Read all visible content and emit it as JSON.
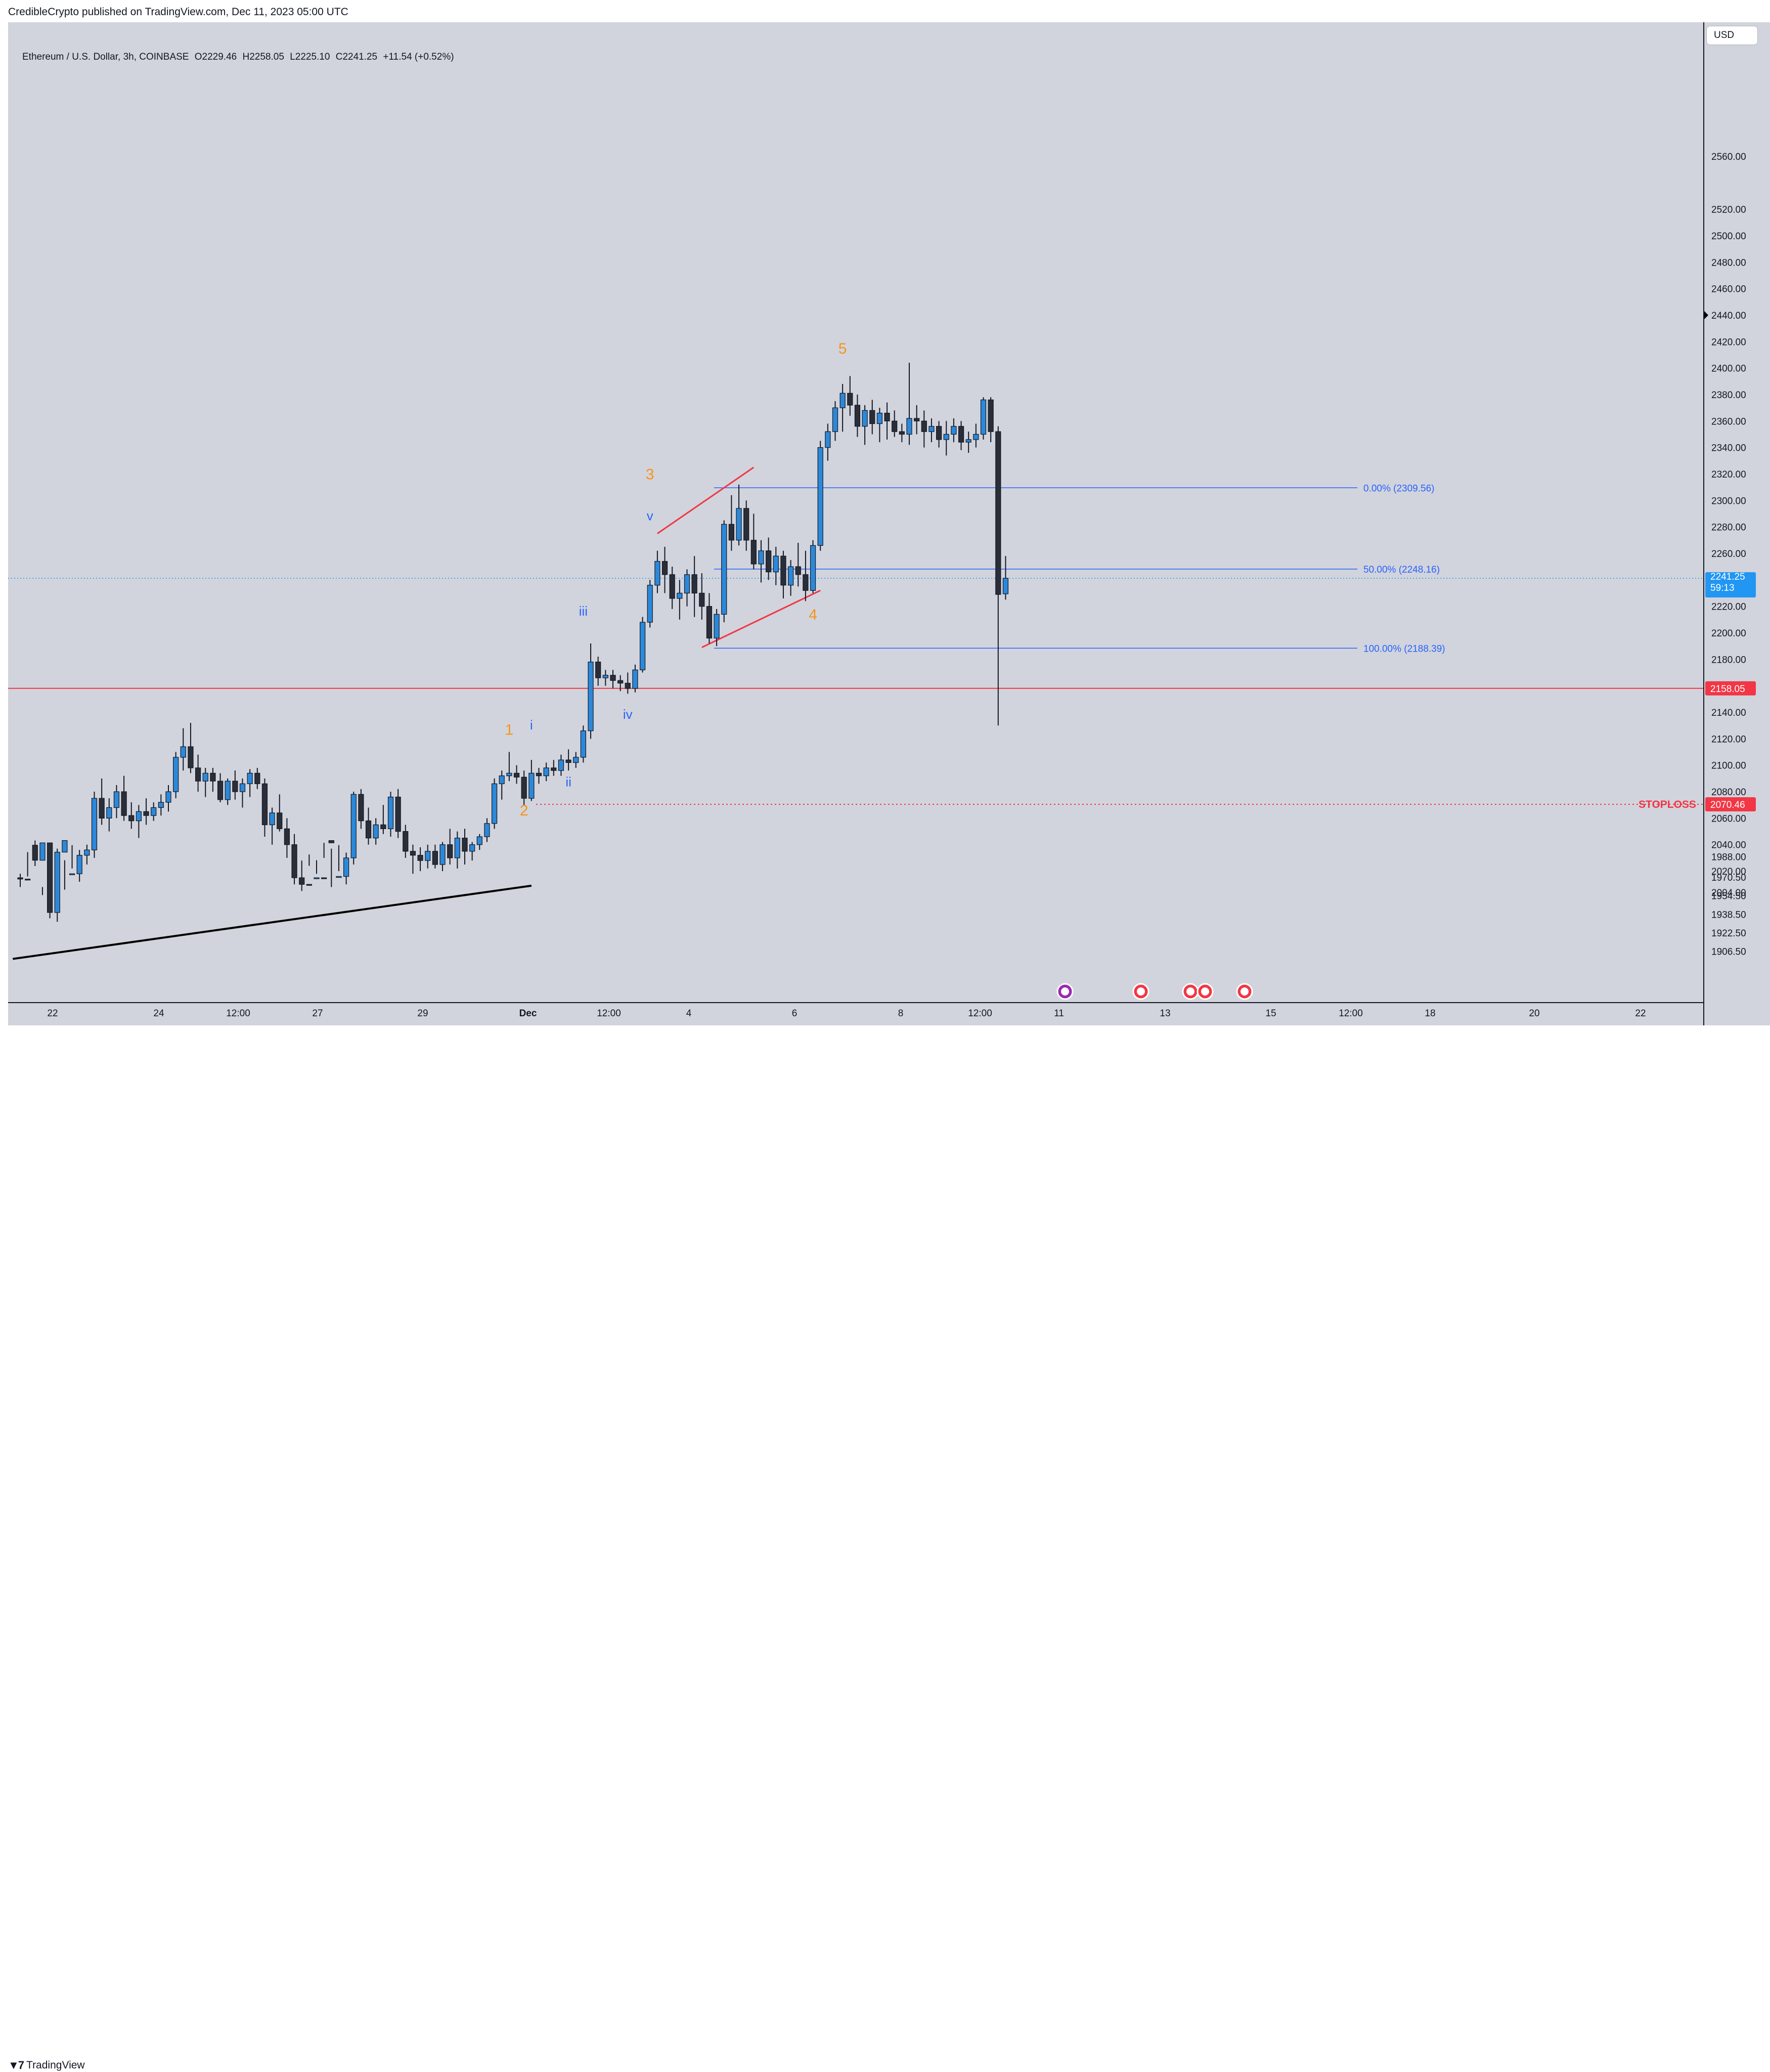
{
  "header": {
    "published": "CredibleCrypto published on TradingView.com, Dec 11, 2023 05:00 UTC"
  },
  "footer": {
    "brand": "TradingView",
    "brand_icon": "tradingview-logo-icon"
  },
  "legend": {
    "symbol": "Ethereum / U.S. Dollar, 3h, COINBASE",
    "open": "O2229.46",
    "high": "H2258.05",
    "low": "L2225.10",
    "close": "C2241.25",
    "change": "+11.54 (+0.52%)"
  },
  "currency": "USD",
  "colors": {
    "background": "#d1d4dc",
    "up": "#2c88d9",
    "down": "#2a2e39",
    "wave_orange": "#f7931a",
    "wave_blue": "#2962ff",
    "fib": "#2962ff",
    "red": "#f23645",
    "price_tag": "#2196f3"
  },
  "chart_data": {
    "type": "candlestick",
    "interval": "3h",
    "price_axis": {
      "labels": [
        "2560.00",
        "2520.00",
        "2500.00",
        "2480.00",
        "2460.00",
        "2440.00",
        "2420.00",
        "2400.00",
        "2380.00",
        "2360.00",
        "2340.00",
        "2320.00",
        "2300.00",
        "2280.00",
        "2260.00",
        "2220.00",
        "2200.00",
        "2180.00",
        "2140.00",
        "2120.00",
        "2100.00",
        "2080.00",
        "2060.00",
        "2040.00",
        "2020.00",
        "2004.00",
        "1988.00",
        "1970.50",
        "1954.50",
        "1938.50",
        "1922.50",
        "1906.50"
      ],
      "values": [
        2560,
        2520,
        2500,
        2480,
        2460,
        2440,
        2420,
        2400,
        2380,
        2360,
        2340,
        2320,
        2300,
        2280,
        2260,
        2220,
        2200,
        2180,
        2140,
        2120,
        2100,
        2080,
        2060,
        2040,
        2020,
        2004,
        1988,
        1970.5,
        1954.5,
        1938.5,
        1922.5,
        1906.5
      ]
    },
    "time_axis": {
      "labels": [
        "22",
        "24",
        "12:00",
        "27",
        "29",
        "Dec",
        "12:00",
        "4",
        "6",
        "8",
        "12:00",
        "11",
        "13",
        "15",
        "12:00",
        "18",
        "20",
        "22"
      ]
    },
    "current_price": {
      "price": "2241.25",
      "countdown": "59:13"
    },
    "horizontal_lines": [
      {
        "price": 2158.05,
        "label": "2158.05",
        "style": "solid"
      },
      {
        "price": 2070.46,
        "label": "2070.46",
        "style": "dotted",
        "text": "STOPLOSS"
      }
    ],
    "fib_levels": [
      {
        "price": 2309.56,
        "label": "0.00% (2309.56)"
      },
      {
        "price": 2248.16,
        "label": "50.00% (2248.16)"
      },
      {
        "price": 2188.39,
        "label": "100.00% (2188.39)"
      }
    ],
    "wave_labels": [
      {
        "text": "1",
        "color": "orange",
        "bar": 66,
        "price": 2123
      },
      {
        "text": "2",
        "color": "orange",
        "bar": 68,
        "price": 2062
      },
      {
        "text": "3",
        "color": "orange",
        "bar": 85,
        "price": 2316
      },
      {
        "text": "4",
        "color": "orange",
        "bar": 107,
        "price": 2210
      },
      {
        "text": "5",
        "color": "orange",
        "bar": 111,
        "price": 2411
      },
      {
        "text": "i",
        "color": "blue",
        "bar": 69,
        "price": 2127
      },
      {
        "text": "ii",
        "color": "blue",
        "bar": 74,
        "price": 2084
      },
      {
        "text": "iii",
        "color": "blue",
        "bar": 76,
        "price": 2213
      },
      {
        "text": "iv",
        "color": "blue",
        "bar": 82,
        "price": 2135
      },
      {
        "text": "v",
        "color": "blue",
        "bar": 85,
        "price": 2285
      }
    ],
    "trend_lines": [
      {
        "color": "black",
        "from": {
          "bar": -1,
          "price": 1900
        },
        "to": {
          "bar": 69,
          "price": 2009
        }
      },
      {
        "color": "red",
        "from": {
          "bar": 86,
          "price": 2275
        },
        "to": {
          "bar": 99,
          "price": 2325
        }
      },
      {
        "color": "red",
        "from": {
          "bar": 92,
          "price": 2189
        },
        "to": {
          "bar": 108,
          "price": 2232
        }
      }
    ],
    "candles": [
      [
        2015,
        2018,
        2008,
        2014
      ],
      [
        2014,
        2016,
        1992,
        1998
      ],
      [
        1998,
        2002,
        1980,
        1985
      ],
      [
        1985,
        2008,
        1955,
        2000
      ],
      [
        2000,
        2004,
        1935,
        1940
      ],
      [
        1940,
        1995,
        1932,
        1992
      ],
      [
        1992,
        2006,
        1985,
        2002
      ],
      [
        2002,
        2022,
        1998,
        2018
      ],
      [
        2018,
        2036,
        2012,
        2032
      ],
      [
        2032,
        2040,
        2025,
        2036
      ],
      [
        2036,
        2080,
        2030,
        2075
      ],
      [
        2075,
        2090,
        2055,
        2060
      ],
      [
        2060,
        2075,
        2050,
        2068
      ],
      [
        2068,
        2085,
        2060,
        2080
      ],
      [
        2080,
        2092,
        2058,
        2062
      ],
      [
        2062,
        2072,
        2052,
        2058
      ],
      [
        2058,
        2070,
        2045,
        2065
      ],
      [
        2065,
        2075,
        2055,
        2062
      ],
      [
        2062,
        2072,
        2058,
        2068
      ],
      [
        2068,
        2078,
        2062,
        2072
      ],
      [
        2072,
        2085,
        2065,
        2080
      ],
      [
        2080,
        2110,
        2075,
        2106
      ],
      [
        2106,
        2128,
        2096,
        2114
      ],
      [
        2114,
        2132,
        2094,
        2098
      ],
      [
        2098,
        2108,
        2080,
        2088
      ],
      [
        2088,
        2098,
        2076,
        2094
      ],
      [
        2094,
        2098,
        2080,
        2088
      ],
      [
        2088,
        2094,
        2072,
        2074
      ],
      [
        2074,
        2090,
        2070,
        2088
      ],
      [
        2088,
        2096,
        2074,
        2080
      ],
      [
        2080,
        2090,
        2068,
        2086
      ],
      [
        2086,
        2097,
        2076,
        2094
      ],
      [
        2094,
        2098,
        2082,
        2086
      ],
      [
        2086,
        2090,
        2046,
        2055
      ],
      [
        2055,
        2068,
        2040,
        2064
      ],
      [
        2064,
        2078,
        2050,
        2052
      ],
      [
        2052,
        2060,
        2030,
        2040
      ],
      [
        2040,
        2048,
        2010,
        2015
      ],
      [
        2015,
        2028,
        2005,
        2010
      ],
      [
        2010,
        2024,
        1990,
        1995
      ],
      [
        1995,
        2018,
        1985,
        2015
      ],
      [
        2015,
        2030,
        2000,
        2002
      ],
      [
        2002,
        2008,
        1995,
        2000
      ],
      [
        2000,
        2020,
        1998,
        2016
      ],
      [
        2016,
        2034,
        2010,
        2030
      ],
      [
        2030,
        2080,
        2025,
        2078
      ],
      [
        2078,
        2082,
        2052,
        2058
      ],
      [
        2058,
        2068,
        2040,
        2045
      ],
      [
        2045,
        2060,
        2040,
        2055
      ],
      [
        2055,
        2070,
        2048,
        2052
      ],
      [
        2052,
        2080,
        2046,
        2076
      ],
      [
        2076,
        2082,
        2045,
        2050
      ],
      [
        2050,
        2055,
        2030,
        2035
      ],
      [
        2035,
        2040,
        2018,
        2032
      ],
      [
        2032,
        2038,
        2020,
        2028
      ],
      [
        2028,
        2040,
        2022,
        2035
      ],
      [
        2035,
        2040,
        2022,
        2025
      ],
      [
        2025,
        2042,
        2020,
        2040
      ],
      [
        2040,
        2052,
        2025,
        2030
      ],
      [
        2030,
        2050,
        2022,
        2045
      ],
      [
        2045,
        2052,
        2025,
        2035
      ],
      [
        2035,
        2042,
        2028,
        2040
      ],
      [
        2040,
        2048,
        2036,
        2046
      ],
      [
        2046,
        2060,
        2042,
        2056
      ],
      [
        2056,
        2090,
        2052,
        2086
      ],
      [
        2086,
        2096,
        2074,
        2092
      ],
      [
        2092,
        2110,
        2088,
        2094
      ],
      [
        2094,
        2100,
        2086,
        2091
      ],
      [
        2091,
        2096,
        2070,
        2075
      ],
      [
        2075,
        2104,
        2073,
        2094
      ],
      [
        2094,
        2098,
        2086,
        2092
      ],
      [
        2092,
        2102,
        2088,
        2098
      ],
      [
        2098,
        2104,
        2092,
        2096
      ],
      [
        2096,
        2108,
        2092,
        2104
      ],
      [
        2104,
        2112,
        2096,
        2102
      ],
      [
        2102,
        2110,
        2098,
        2106
      ],
      [
        2106,
        2130,
        2102,
        2126
      ],
      [
        2126,
        2192,
        2120,
        2178
      ],
      [
        2178,
        2182,
        2160,
        2166
      ],
      [
        2166,
        2172,
        2160,
        2168
      ],
      [
        2168,
        2172,
        2158,
        2164
      ],
      [
        2164,
        2168,
        2156,
        2162
      ],
      [
        2162,
        2170,
        2154,
        2158
      ],
      [
        2158,
        2176,
        2155,
        2172
      ],
      [
        2172,
        2212,
        2170,
        2208
      ],
      [
        2208,
        2240,
        2204,
        2236
      ],
      [
        2236,
        2262,
        2230,
        2254
      ],
      [
        2254,
        2265,
        2230,
        2244
      ],
      [
        2244,
        2250,
        2218,
        2226
      ],
      [
        2226,
        2240,
        2210,
        2230
      ],
      [
        2230,
        2248,
        2220,
        2244
      ],
      [
        2244,
        2258,
        2212,
        2230
      ],
      [
        2230,
        2245,
        2210,
        2220
      ],
      [
        2220,
        2230,
        2192,
        2196
      ],
      [
        2196,
        2218,
        2190,
        2214
      ],
      [
        2214,
        2285,
        2208,
        2282
      ],
      [
        2282,
        2304,
        2262,
        2270
      ],
      [
        2270,
        2312,
        2266,
        2294
      ],
      [
        2294,
        2300,
        2262,
        2270
      ],
      [
        2270,
        2290,
        2248,
        2252
      ],
      [
        2252,
        2270,
        2238,
        2262
      ],
      [
        2262,
        2272,
        2240,
        2246
      ],
      [
        2246,
        2265,
        2236,
        2258
      ],
      [
        2258,
        2262,
        2226,
        2236
      ],
      [
        2236,
        2255,
        2228,
        2250
      ],
      [
        2250,
        2268,
        2235,
        2244
      ],
      [
        2244,
        2262,
        2224,
        2232
      ],
      [
        2232,
        2270,
        2230,
        2266
      ],
      [
        2266,
        2345,
        2262,
        2340
      ],
      [
        2340,
        2358,
        2330,
        2352
      ],
      [
        2352,
        2375,
        2345,
        2370
      ],
      [
        2370,
        2388,
        2352,
        2381
      ],
      [
        2381,
        2394,
        2364,
        2372
      ],
      [
        2372,
        2380,
        2348,
        2356
      ],
      [
        2356,
        2372,
        2342,
        2368
      ],
      [
        2368,
        2376,
        2350,
        2358
      ],
      [
        2358,
        2370,
        2344,
        2366
      ],
      [
        2366,
        2374,
        2346,
        2360
      ],
      [
        2360,
        2368,
        2348,
        2352
      ],
      [
        2352,
        2358,
        2344,
        2350
      ],
      [
        2350,
        2404,
        2342,
        2362
      ],
      [
        2362,
        2372,
        2350,
        2360
      ],
      [
        2360,
        2368,
        2340,
        2352
      ],
      [
        2352,
        2362,
        2344,
        2356
      ],
      [
        2356,
        2360,
        2340,
        2346
      ],
      [
        2346,
        2360,
        2334,
        2350
      ],
      [
        2350,
        2362,
        2344,
        2356
      ],
      [
        2356,
        2360,
        2338,
        2344
      ],
      [
        2344,
        2352,
        2336,
        2346
      ],
      [
        2346,
        2358,
        2340,
        2350
      ],
      [
        2350,
        2378,
        2346,
        2376
      ],
      [
        2376,
        2378,
        2344,
        2352
      ],
      [
        2352,
        2356,
        2130,
        2229
      ],
      [
        2229.46,
        2258.05,
        2225.1,
        2241.25
      ]
    ]
  }
}
